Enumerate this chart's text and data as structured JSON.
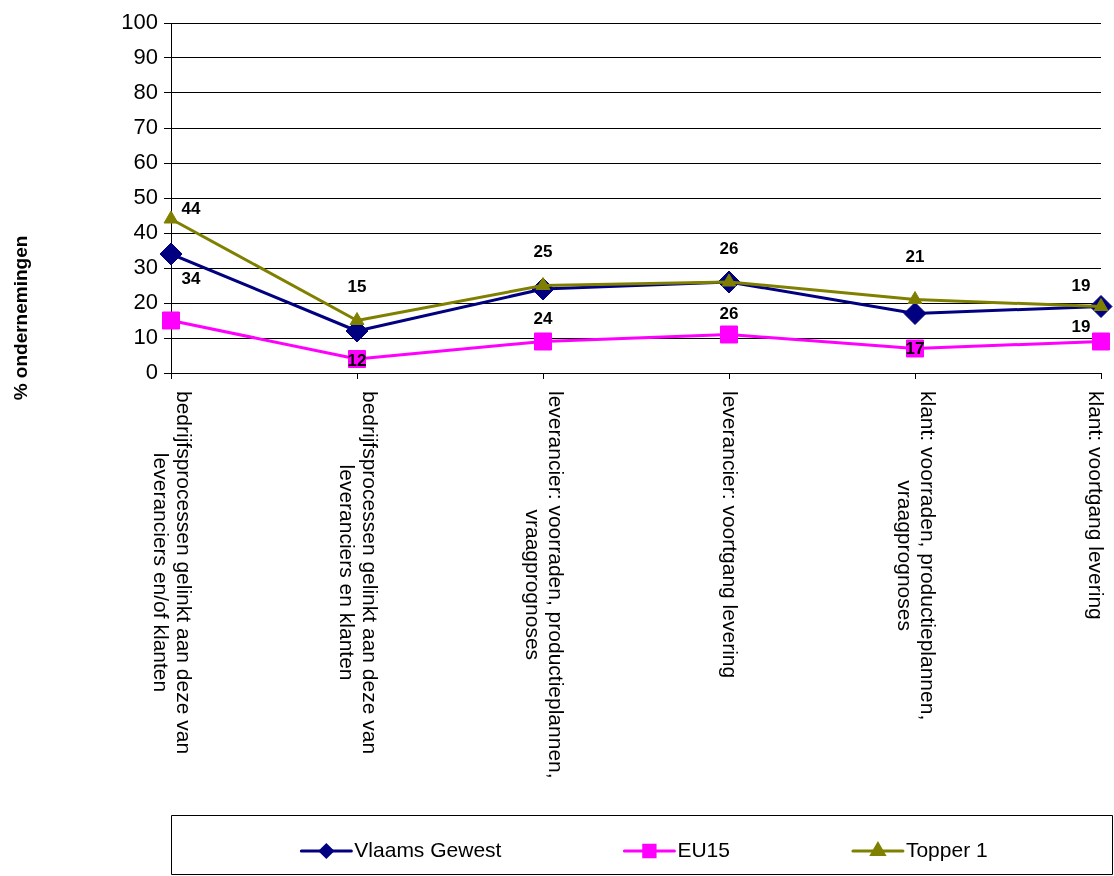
{
  "chart_data": {
    "type": "line",
    "ylabel": "% ondernemingen",
    "categories": [
      "bedrijfsprocessen gelinkt aan deze van leveranciers en/of klanten",
      "bedrijfsprocessen gelinkt aan deze van leveranciers en klanten",
      "leverancier: voorraden, productieplannen, vraagprognoses",
      "leverancier: voortgang levering",
      "klant: voorraden, productieplannen, vraagprognoses",
      "klant: voortgang levering"
    ],
    "series": [
      {
        "name": "Vlaams Gewest",
        "color": "#000080",
        "marker": "diamond",
        "values": [
          34,
          12,
          24,
          26,
          17,
          19
        ],
        "value_labels": [
          "34",
          "12",
          "24",
          "26",
          "17",
          "19"
        ]
      },
      {
        "name": "EU15",
        "color": "#ff00ff",
        "marker": "square",
        "values": [
          15,
          4,
          9,
          11,
          7,
          9
        ]
      },
      {
        "name": "Topper 1",
        "color": "#808000",
        "marker": "triangle",
        "values": [
          44,
          15,
          25,
          26,
          21,
          19
        ],
        "value_labels": [
          "44",
          "15",
          "25",
          "26",
          "21",
          "19"
        ]
      }
    ],
    "ylim": [
      0,
      100
    ],
    "yticks": [
      0,
      10,
      20,
      30,
      40,
      50,
      60,
      70,
      80,
      90,
      100
    ],
    "grid": "y",
    "legend": "bottom"
  }
}
